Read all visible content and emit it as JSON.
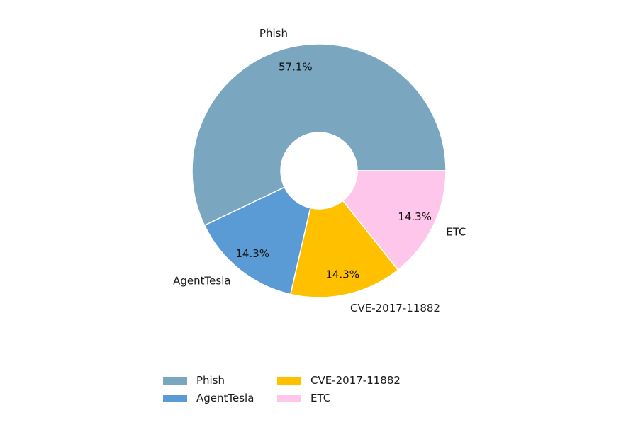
{
  "chart_data": {
    "type": "pie",
    "donut": true,
    "start": "right, counterclockwise",
    "slices": [
      {
        "label": "Phish",
        "value": 57.1,
        "pct_label": "57.1%",
        "color": "#7aa6c0"
      },
      {
        "label": "AgentTesla",
        "value": 14.3,
        "pct_label": "14.3%",
        "color": "#5b9bd5"
      },
      {
        "label": "CVE-2017-11882",
        "value": 14.3,
        "pct_label": "14.3%",
        "color": "#ffc000"
      },
      {
        "label": "ETC",
        "value": 14.3,
        "pct_label": "14.3%",
        "color": "#ffc6ec"
      }
    ],
    "legend": {
      "position": "bottom-center",
      "columns": 3,
      "entries": [
        "Phish",
        "AgentTesla",
        "CVE-2017-11882",
        "ETC"
      ]
    }
  }
}
